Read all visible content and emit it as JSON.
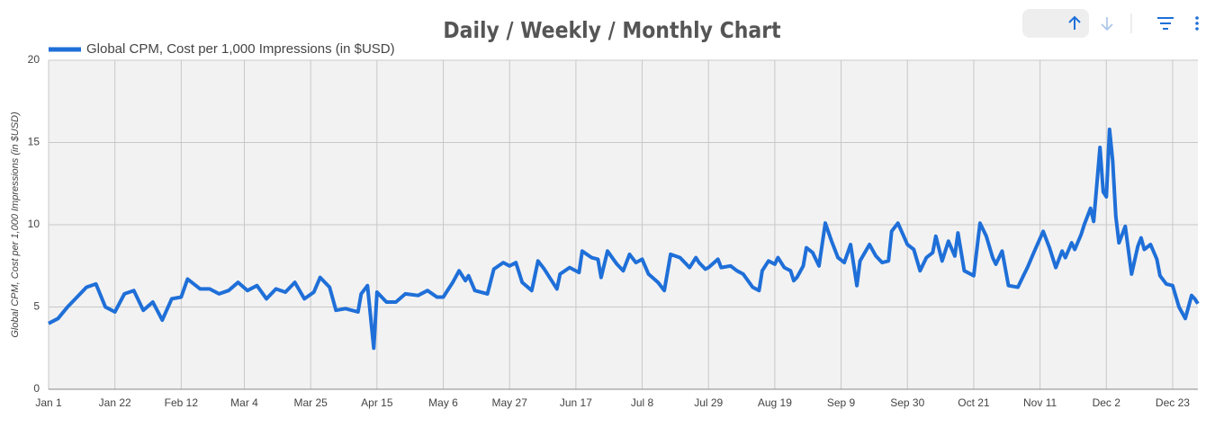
{
  "chart_data": {
    "type": "line",
    "title": "Daily / Weekly / Monthly Chart",
    "ylabel": "Global CPM, Cost per 1,000 Impressions (in $USD)",
    "xlim": [
      "Jan 1",
      "Dec 31"
    ],
    "xticks": [
      "Jan 1",
      "Jan 22",
      "Feb 12",
      "Mar 4",
      "Mar 25",
      "Apr 15",
      "May 6",
      "May 27",
      "Jun 17",
      "Jul 8",
      "Jul 29",
      "Aug 19",
      "Sep 9",
      "Sep 30",
      "Oct 21",
      "Nov 11",
      "Dec 2",
      "Dec 23"
    ],
    "ylim": [
      0,
      20
    ],
    "yticks": [
      0,
      5,
      10,
      15,
      20
    ],
    "grid": true,
    "x": [
      "Jan 1",
      "Jan 4",
      "Jan 7",
      "Jan 10",
      "Jan 13",
      "Jan 16",
      "Jan 19",
      "Jan 22",
      "Jan 25",
      "Jan 28",
      "Jan 31",
      "Feb 3",
      "Feb 6",
      "Feb 9",
      "Feb 12",
      "Feb 14",
      "Feb 18",
      "Feb 21",
      "Feb 24",
      "Feb 27",
      "Mar 2",
      "Mar 5",
      "Mar 8",
      "Mar 11",
      "Mar 14",
      "Mar 17",
      "Mar 20",
      "Mar 23",
      "Mar 26",
      "Mar 28",
      "Mar 31",
      "Apr 2",
      "Apr 5",
      "Apr 9",
      "Apr 10",
      "Apr 12",
      "Apr 14",
      "Apr 15",
      "Apr 18",
      "Apr 21",
      "Apr 24",
      "Apr 28",
      "May 1",
      "May 4",
      "May 6",
      "May 9",
      "May 11",
      "May 13",
      "May 14",
      "May 16",
      "May 20",
      "May 22",
      "May 25",
      "May 27",
      "May 29",
      "May 31",
      "Jun 3",
      "Jun 5",
      "Jun 7",
      "Jun 11",
      "Jun 12",
      "Jun 15",
      "Jun 18",
      "Jun 19",
      "Jun 22",
      "Jun 24",
      "Jun 25",
      "Jun 27",
      "Jun 30",
      "Jul 2",
      "Jul 4",
      "Jul 6",
      "Jul 8",
      "Jul 10",
      "Jul 13",
      "Jul 15",
      "Jul 17",
      "Jul 20",
      "Jul 23",
      "Jul 25",
      "Jul 26",
      "Jul 28",
      "Jul 29",
      "Aug 1",
      "Aug 2",
      "Aug 5",
      "Aug 7",
      "Aug 9",
      "Aug 12",
      "Aug 14",
      "Aug 15",
      "Aug 17",
      "Aug 19",
      "Aug 20",
      "Aug 22",
      "Aug 24",
      "Aug 25",
      "Aug 26",
      "Aug 28",
      "Aug 29",
      "Aug 31",
      "Sep 2",
      "Sep 4",
      "Sep 6",
      "Sep 8",
      "Sep 10",
      "Sep 12",
      "Sep 14",
      "Sep 15",
      "Sep 18",
      "Sep 20",
      "Sep 22",
      "Sep 24",
      "Sep 25",
      "Sep 27",
      "Sep 30",
      "Oct 2",
      "Oct 4",
      "Oct 6",
      "Oct 8",
      "Oct 9",
      "Oct 11",
      "Oct 13",
      "Oct 15",
      "Oct 16",
      "Oct 18",
      "Oct 21",
      "Oct 23",
      "Oct 25",
      "Oct 27",
      "Oct 28",
      "Oct 30",
      "Nov 1",
      "Nov 4",
      "Nov 6",
      "Nov 7",
      "Nov 9",
      "Nov 12",
      "Nov 14",
      "Nov 16",
      "Nov 18",
      "Nov 19",
      "Nov 21",
      "Nov 22",
      "Nov 24",
      "Nov 25",
      "Nov 27",
      "Nov 28",
      "Nov 30",
      "Dec 1",
      "Dec 2",
      "Dec 3",
      "Dec 4",
      "Dec 5",
      "Dec 6",
      "Dec 8",
      "Dec 10",
      "Dec 12",
      "Dec 13",
      "Dec 14",
      "Dec 16",
      "Dec 18",
      "Dec 19",
      "Dec 21",
      "Dec 23",
      "Dec 25",
      "Dec 27",
      "Dec 29",
      "Dec 30",
      "Dec 31"
    ],
    "series": [
      {
        "name": "Global CPM, Cost per 1,000 Impressions (in $USD)",
        "color": "#1f6fd8",
        "values": [
          4.0,
          4.3,
          5.0,
          5.6,
          6.2,
          6.4,
          5.0,
          4.7,
          5.8,
          6.0,
          4.8,
          5.3,
          4.2,
          5.5,
          5.6,
          6.7,
          6.1,
          6.1,
          5.8,
          6.0,
          6.5,
          6.0,
          6.3,
          5.5,
          6.1,
          5.9,
          6.5,
          5.5,
          5.9,
          6.8,
          6.2,
          4.8,
          4.9,
          4.7,
          5.8,
          6.3,
          2.5,
          5.9,
          5.3,
          5.3,
          5.8,
          5.7,
          6.0,
          5.6,
          5.6,
          6.5,
          7.2,
          6.6,
          6.9,
          6.0,
          5.8,
          7.3,
          7.7,
          7.5,
          7.7,
          6.5,
          6.0,
          7.8,
          7.3,
          6.1,
          7.0,
          7.4,
          7.1,
          8.4,
          8.0,
          7.9,
          6.8,
          8.4,
          7.6,
          7.2,
          8.2,
          7.7,
          7.9,
          7.0,
          6.5,
          6.0,
          8.2,
          8.0,
          7.4,
          8.0,
          7.7,
          7.3,
          7.4,
          7.9,
          7.4,
          7.5,
          7.2,
          7.0,
          6.2,
          6.0,
          7.2,
          7.8,
          7.6,
          8.0,
          7.4,
          7.2,
          6.6,
          6.8,
          7.5,
          8.6,
          8.3,
          7.5,
          10.1,
          9.0,
          8.0,
          7.7,
          8.8,
          6.3,
          7.8,
          8.8,
          8.1,
          7.7,
          7.8,
          9.6,
          10.1,
          8.8,
          8.5,
          7.2,
          8.0,
          8.3,
          9.3,
          7.8,
          9.0,
          8.1,
          9.5,
          7.2,
          6.9,
          10.1,
          9.3,
          8.0,
          7.6,
          8.4,
          6.3,
          6.2,
          7.0,
          7.4,
          8.3,
          9.6,
          8.6,
          7.4,
          8.4,
          8.0,
          8.9,
          8.5,
          9.4,
          10.0,
          11.0,
          10.2,
          14.7,
          12.0,
          11.7,
          15.8,
          13.9,
          10.5,
          8.9,
          9.9,
          7.0,
          8.7,
          9.2,
          8.5,
          8.8,
          7.9,
          6.9,
          6.4,
          6.3,
          5.0,
          4.3,
          5.7,
          5.5,
          5.2
        ]
      }
    ]
  }
}
